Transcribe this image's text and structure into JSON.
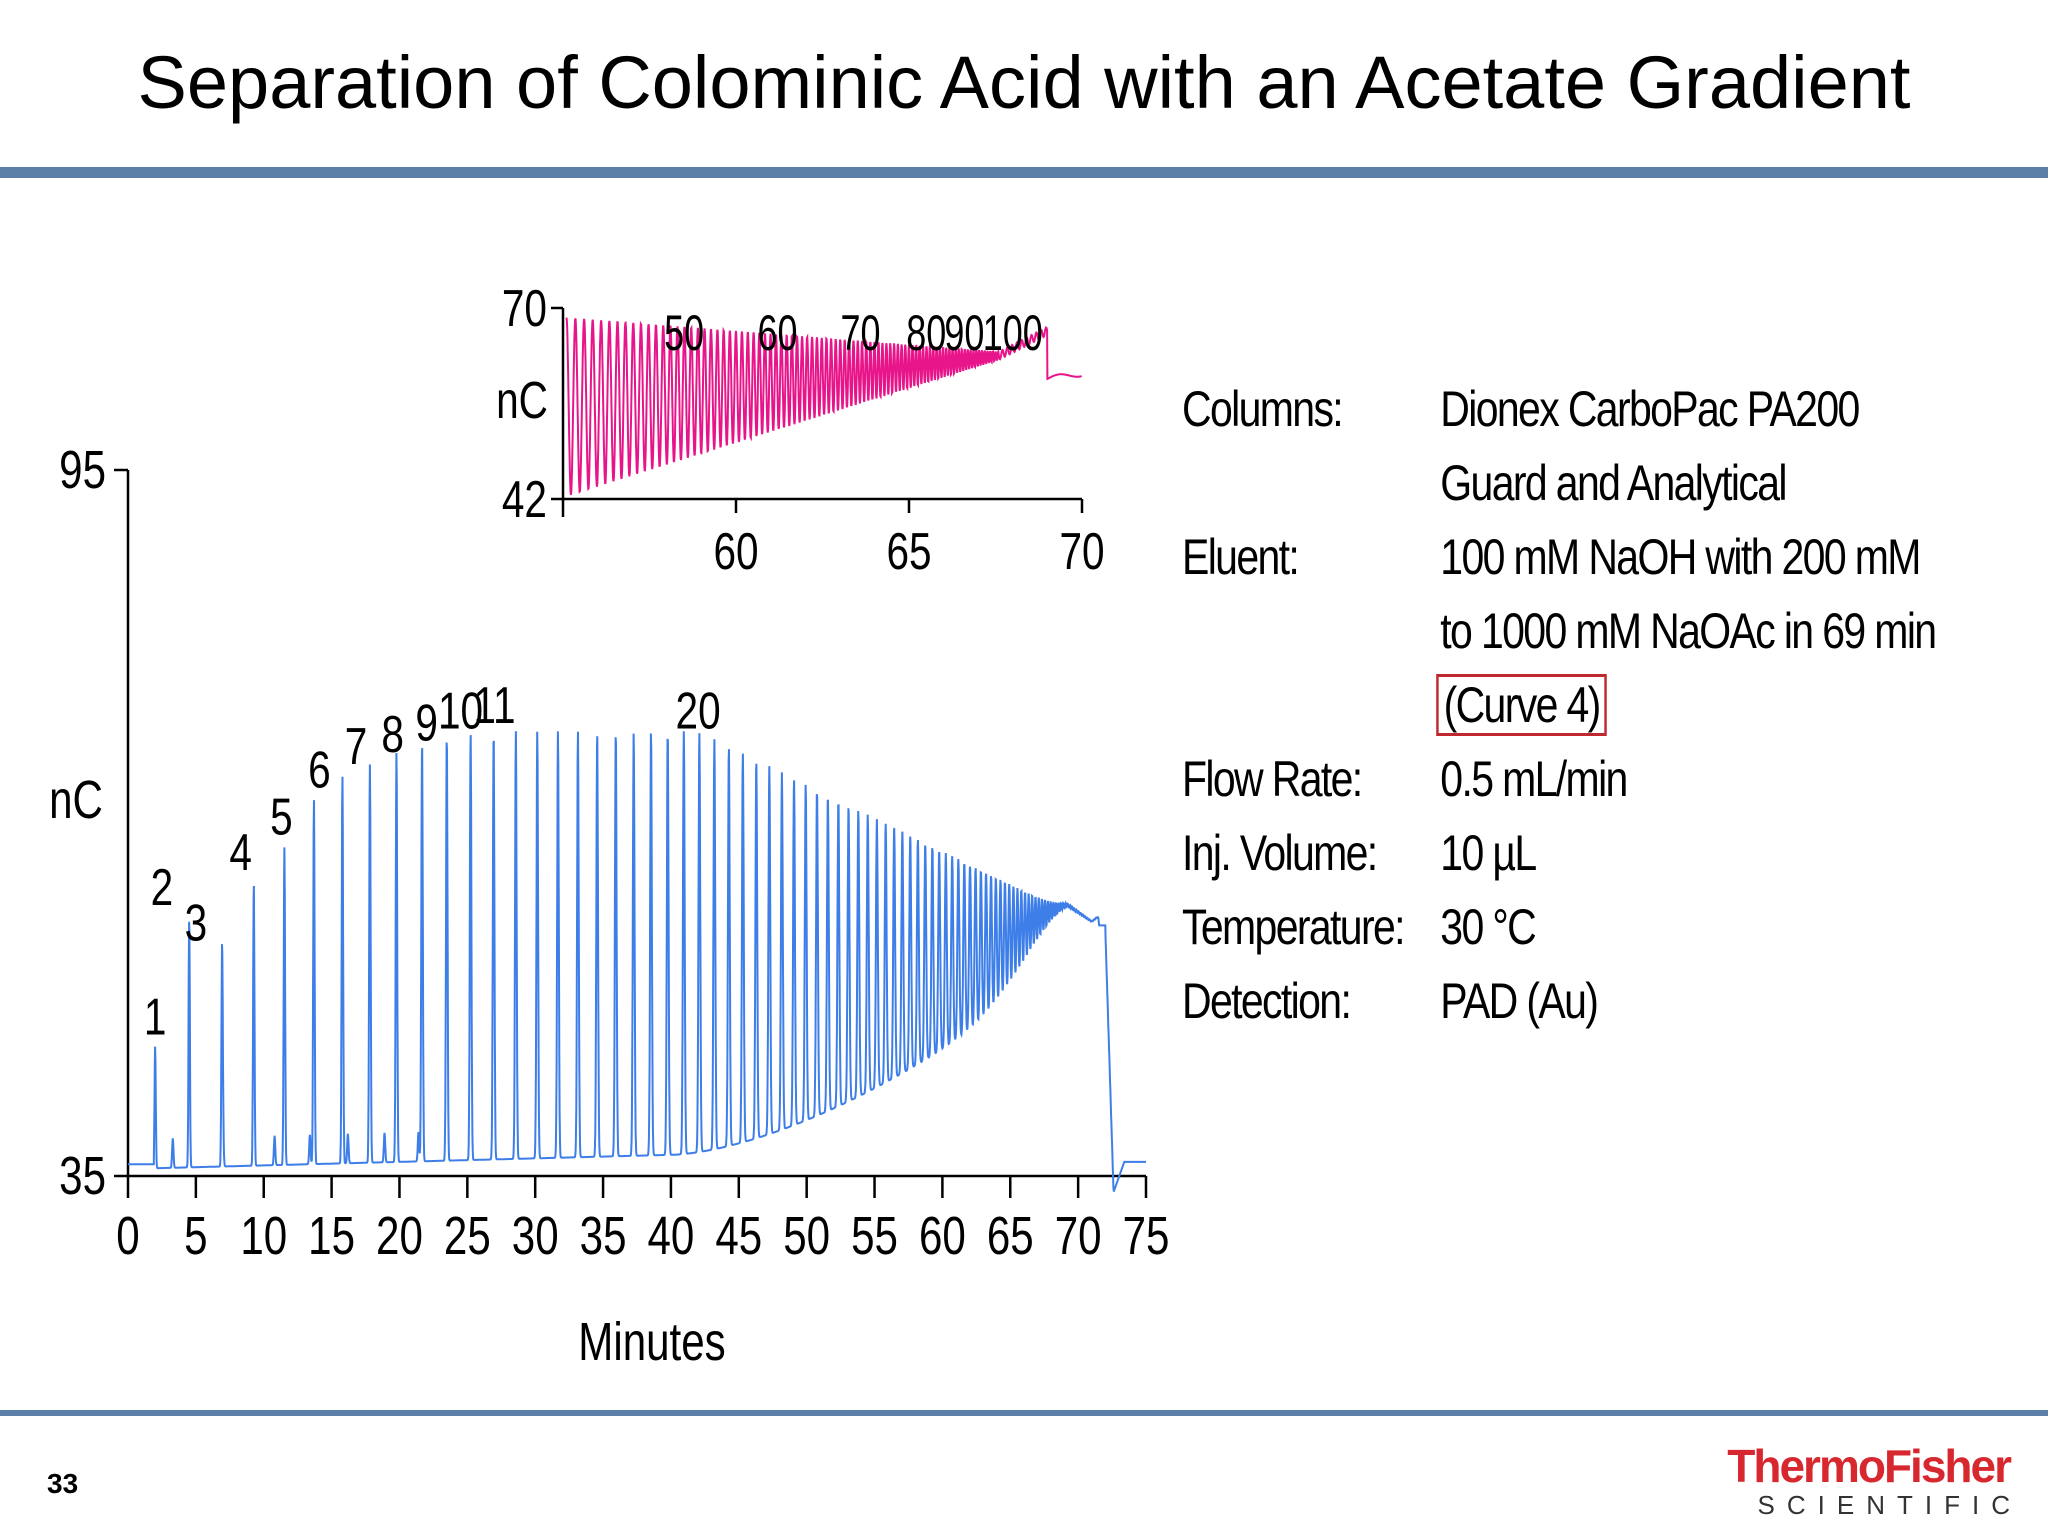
{
  "slide": {
    "title": "Separation of Colominic Acid with an Acetate Gradient",
    "page_number": "33",
    "logo_top": "ThermoFisher",
    "logo_bottom": "SCIENTIFIC"
  },
  "conditions": [
    {
      "label": "Columns:",
      "lines": [
        "Dionex CarboPac PA200",
        "Guard and Analytical"
      ]
    },
    {
      "label": "Eluent:",
      "lines": [
        "100 mM NaOH with 200 mM",
        "to 1000 mM NaOAc in 69 min",
        "(Curve 4)"
      ]
    },
    {
      "label": "Flow Rate:",
      "lines": [
        "0.5 mL/min"
      ]
    },
    {
      "label": "Inj. Volume:",
      "lines": [
        "10 µL"
      ]
    },
    {
      "label": "Temperature:",
      "lines": [
        "30 °C"
      ]
    },
    {
      "label": "Detection:",
      "lines": [
        "PAD (Au)"
      ]
    }
  ],
  "chart_data": [
    {
      "type": "line",
      "name": "main",
      "color": "#3d7ee8",
      "xlabel": "Minutes",
      "ylabel": "nC",
      "xlim": [
        0,
        75
      ],
      "ylim": [
        35,
        95
      ],
      "xticks": [
        0,
        5,
        10,
        15,
        20,
        25,
        30,
        35,
        40,
        45,
        50,
        55,
        60,
        65,
        70,
        75
      ],
      "yticks": [
        35,
        95
      ],
      "peak_labels": [
        {
          "label": "1",
          "x": 2.0,
          "y": 46
        },
        {
          "label": "2",
          "x": 2.5,
          "y": 57
        },
        {
          "label": "3",
          "x": 5.0,
          "y": 54
        },
        {
          "label": "4",
          "x": 8.3,
          "y": 60
        },
        {
          "label": "5",
          "x": 11.3,
          "y": 63
        },
        {
          "label": "6",
          "x": 14.1,
          "y": 67
        },
        {
          "label": "7",
          "x": 16.8,
          "y": 69
        },
        {
          "label": "8",
          "x": 19.5,
          "y": 70
        },
        {
          "label": "9",
          "x": 22.0,
          "y": 71
        },
        {
          "label": "10",
          "x": 24.5,
          "y": 72
        },
        {
          "label": "11",
          "x": 27.0,
          "y": 72.5
        },
        {
          "label": "20",
          "x": 42.0,
          "y": 72
        }
      ]
    },
    {
      "type": "line",
      "name": "inset",
      "color": "#e8158a",
      "ylabel": "nC",
      "xlim": [
        55,
        70
      ],
      "ylim": [
        42,
        70
      ],
      "xticks": [
        60,
        65,
        70
      ],
      "yticks": [
        42,
        70
      ],
      "peak_labels": [
        {
          "label": "50",
          "x": 58.5
        },
        {
          "label": "60",
          "x": 61.2
        },
        {
          "label": "70",
          "x": 63.6
        },
        {
          "label": "80",
          "x": 65.5
        },
        {
          "label": "90",
          "x": 66.6
        },
        {
          "label": "100",
          "x": 68.0
        }
      ]
    }
  ]
}
